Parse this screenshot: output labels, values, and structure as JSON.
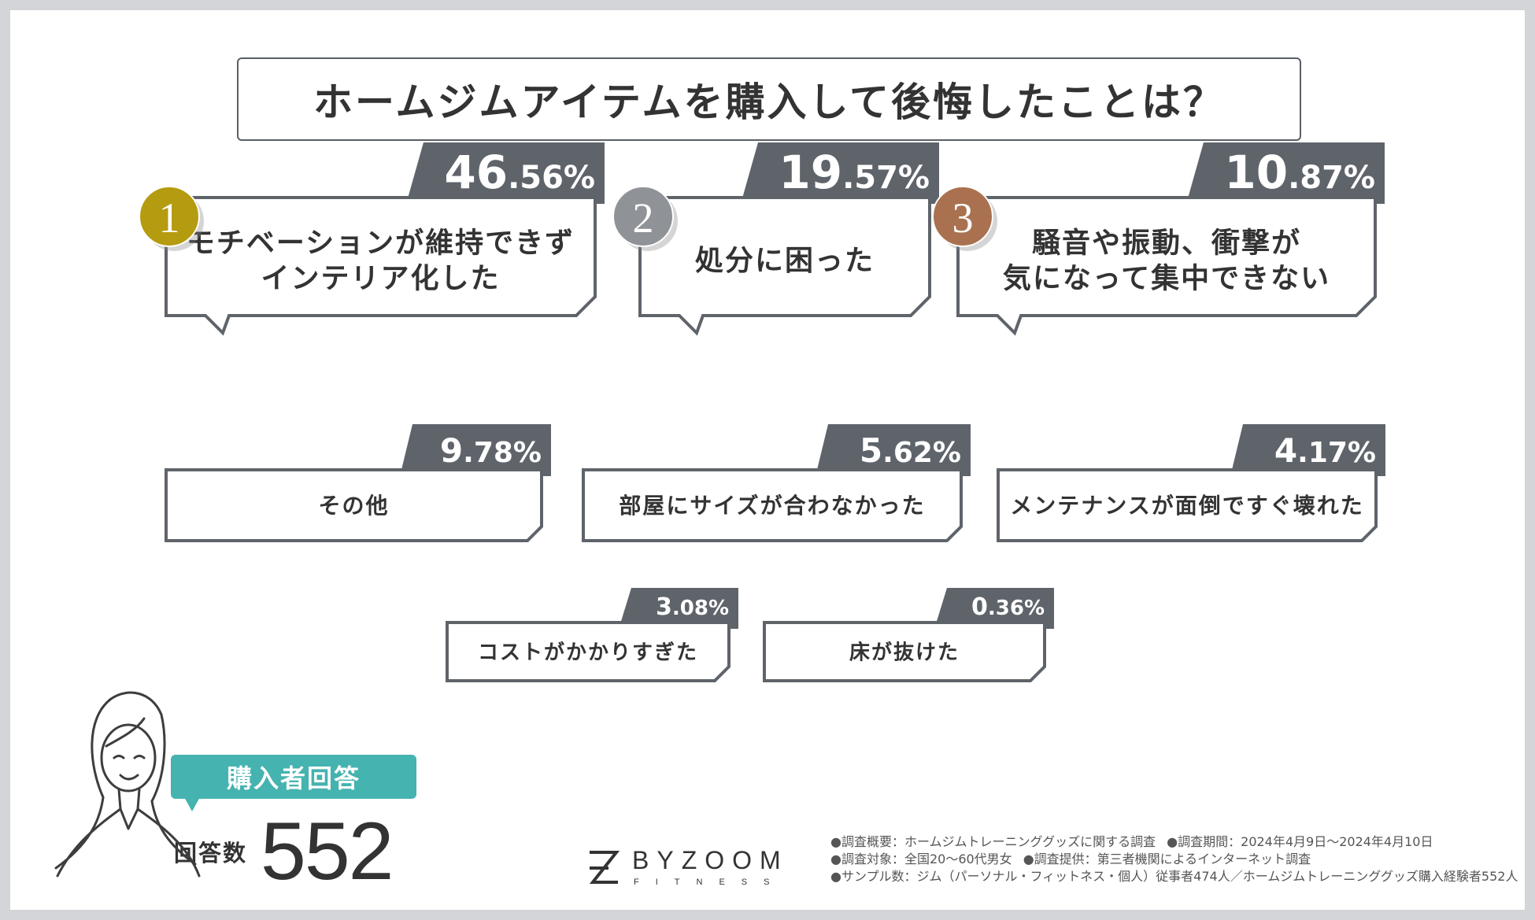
{
  "title": "ホームジムアイテムを購入して後悔したことは？",
  "chart_data": {
    "type": "ranking",
    "title": "ホームジムアイテムを購入して後悔したことは？",
    "unit": "%",
    "items": [
      {
        "rank": "1",
        "label_lines": [
          "モチベーションが維持できず",
          "インテリア化した"
        ],
        "int": "46",
        "dec": ".56%",
        "value": 46.56,
        "medal": "gold"
      },
      {
        "rank": "2",
        "label_lines": [
          "処分に困った"
        ],
        "int": "19",
        "dec": ".57%",
        "value": 19.57,
        "medal": "silver"
      },
      {
        "rank": "3",
        "label_lines": [
          "騒音や振動、衝撃が",
          "気になって集中できない"
        ],
        "int": "10",
        "dec": ".87%",
        "value": 10.87,
        "medal": "bronze"
      },
      {
        "label_lines": [
          "その他"
        ],
        "int": "9",
        "dec": ".78%",
        "value": 9.78
      },
      {
        "label_lines": [
          "部屋にサイズが合わなかった"
        ],
        "int": "5",
        "dec": ".62%",
        "value": 5.62
      },
      {
        "label_lines": [
          "メンテナンスが面倒ですぐ壊れた"
        ],
        "int": "4",
        "dec": ".17%",
        "value": 4.17
      },
      {
        "label_lines": [
          "コストがかかりすぎた"
        ],
        "int": "3",
        "dec": ".08%",
        "value": 3.08
      },
      {
        "label_lines": [
          "床が抜けた"
        ],
        "int": "0",
        "dec": ".36%",
        "value": 0.36
      }
    ]
  },
  "respondents": {
    "badge": "購入者回答",
    "label": "回答数",
    "count": "552"
  },
  "logo": {
    "name": "BYZOOM",
    "sub": "FITNESS"
  },
  "survey": {
    "line1": [
      "●調査概要：ホームジムトレーニンググッズに関する調査",
      "●調査期間：2024年4月9日〜2024年4月10日"
    ],
    "line2": [
      "●調査対象：全国20〜60代男女",
      "●調査提供：第三者機関によるインターネット調査"
    ],
    "line3": [
      "●サンプル数：ジム（パーソナル・フィットネス・個人）従事者474人／ホームジムトレーニンググッズ購入経験者552人"
    ]
  },
  "colors": {
    "tab": "#5f646b",
    "border": "#5f646b",
    "gold": "#b59b10",
    "silver": "#8f9296",
    "bronze": "#a9714f",
    "accent": "#45b3af"
  }
}
